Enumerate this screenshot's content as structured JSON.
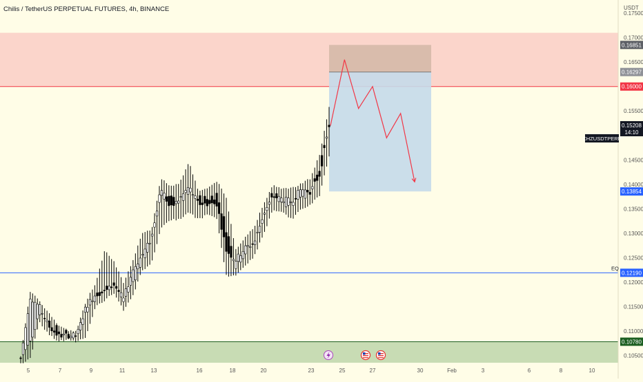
{
  "header": {
    "title": "Chilis / TetherUS PERPETUAL FUTURES, 4h, BINANCE",
    "currency": "USDT"
  },
  "axis": {
    "y_ticks": [
      "0.17500",
      "0.17000",
      "0.16500",
      "0.15500",
      "0.14500",
      "0.14000",
      "0.13500",
      "0.13000",
      "0.12500",
      "0.12000",
      "0.11500",
      "0.11000",
      "0.10500"
    ],
    "x_ticks": [
      "5",
      "7",
      "9",
      "11",
      "13",
      "16",
      "18",
      "20",
      "23",
      "25",
      "27",
      "30",
      "Feb",
      "3",
      "6",
      "8",
      "10"
    ]
  },
  "markers": {
    "top_dark": "0.16851",
    "top_mid": "0.16297",
    "red_line": "0.16000",
    "symbol": "CHZUSDTPERP",
    "last_price": "0.15208",
    "countdown": "14:10",
    "blue_target": "0.13854",
    "eq_label": "EQ",
    "eq_price": "0.12190",
    "green_price": "0.10780"
  },
  "colors": {
    "background": "#fffde7",
    "up": "#ffffff",
    "down": "#000000",
    "supply_zone": "#fbd5cb",
    "demand_zone": "#c8dcb4",
    "stop_zone": "#d5b9a8",
    "target_zone": "#c5daea",
    "red": "#f23645",
    "blue": "#2962ff",
    "green": "#1b5e20"
  },
  "chart_data": {
    "type": "candlestick",
    "y_range": [
      0.1035,
      0.177
    ],
    "zones": {
      "supply": [
        0.16,
        0.171
      ],
      "demand": [
        0.1035,
        0.1078
      ],
      "eq": 0.1219,
      "short_position": {
        "entry": 0.16297,
        "stop": 0.16851,
        "target": 0.13854
      }
    },
    "projection": [
      0.152,
      0.1655,
      0.1555,
      0.16,
      0.1495,
      0.1545,
      0.1405
    ],
    "anchors": [
      [
        0.1045,
        0.1048,
        0.1035,
        0.1043
      ],
      [
        0.1075,
        0.1178,
        0.1045,
        0.117
      ],
      [
        0.114,
        0.116,
        0.112,
        0.115
      ],
      [
        0.112,
        0.1135,
        0.1095,
        0.111
      ],
      [
        0.11,
        0.111,
        0.108,
        0.109
      ],
      [
        0.1093,
        0.1098,
        0.1085,
        0.1091
      ],
      [
        0.1088,
        0.11,
        0.108,
        0.109
      ],
      [
        0.114,
        0.116,
        0.109,
        0.115
      ],
      [
        0.117,
        0.1195,
        0.115,
        0.1175
      ],
      [
        0.1185,
        0.1265,
        0.1165,
        0.118
      ],
      [
        0.12,
        0.124,
        0.118,
        0.1195
      ],
      [
        0.116,
        0.1195,
        0.1145,
        0.1165
      ],
      [
        0.12,
        0.124,
        0.1175,
        0.1225
      ],
      [
        0.1245,
        0.13,
        0.1225,
        0.1255
      ],
      [
        0.128,
        0.1305,
        0.124,
        0.129
      ],
      [
        0.138,
        0.141,
        0.131,
        0.1395
      ],
      [
        0.137,
        0.1395,
        0.133,
        0.135
      ],
      [
        0.1365,
        0.14,
        0.133,
        0.137
      ],
      [
        0.138,
        0.1445,
        0.1345,
        0.1395
      ],
      [
        0.137,
        0.1385,
        0.133,
        0.136
      ],
      [
        0.137,
        0.139,
        0.134,
        0.136
      ],
      [
        0.138,
        0.1405,
        0.133,
        0.136
      ],
      [
        0.131,
        0.137,
        0.1215,
        0.1265
      ],
      [
        0.1235,
        0.1265,
        0.1215,
        0.1245
      ],
      [
        0.126,
        0.129,
        0.1235,
        0.127
      ],
      [
        0.128,
        0.131,
        0.1255,
        0.128
      ],
      [
        0.133,
        0.136,
        0.13,
        0.134
      ],
      [
        0.138,
        0.1395,
        0.135,
        0.1375
      ],
      [
        0.1365,
        0.139,
        0.1345,
        0.137
      ],
      [
        0.136,
        0.139,
        0.133,
        0.1365
      ],
      [
        0.138,
        0.14,
        0.135,
        0.139
      ],
      [
        0.138,
        0.141,
        0.136,
        0.1385
      ],
      [
        0.143,
        0.146,
        0.138,
        0.142
      ],
      [
        0.152,
        0.1555,
        0.146,
        0.152
      ]
    ]
  }
}
